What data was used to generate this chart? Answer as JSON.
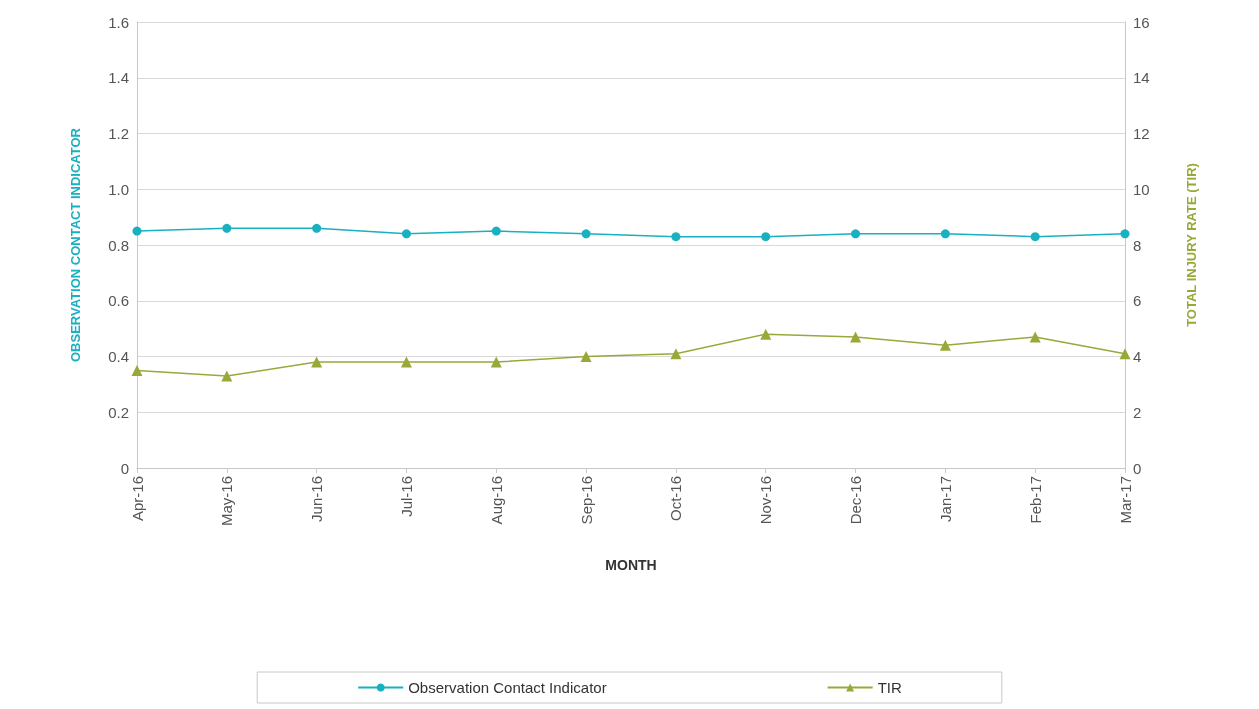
{
  "chart_data": {
    "type": "line",
    "xlabel": "MONTH",
    "ylabel": "OBSERVATION CONTACT INDICATOR",
    "y2label": "TOTAL INJURY RATE (TIR)",
    "categories": [
      "Apr-16",
      "May-16",
      "Jun-16",
      "Jul-16",
      "Aug-16",
      "Sep-16",
      "Oct-16",
      "Nov-16",
      "Dec-16",
      "Jan-17",
      "Feb-17",
      "Mar-17"
    ],
    "series": [
      {
        "name": "Observation Contact Indicator",
        "color": "#19b0c1",
        "marker": "circle",
        "values": [
          0.85,
          0.86,
          0.86,
          0.84,
          0.85,
          0.84,
          0.83,
          0.83,
          0.84,
          0.84,
          0.83,
          0.84
        ]
      },
      {
        "name": "TIR",
        "color": "#9aa83a",
        "marker": "triangle",
        "axis": "y2",
        "values": [
          3.5,
          3.3,
          3.8,
          3.8,
          3.8,
          4.0,
          4.1,
          4.8,
          4.7,
          4.4,
          4.7,
          4.1
        ]
      }
    ],
    "ylim": [
      0,
      1.6
    ],
    "yticks": [
      0,
      0.2,
      0.4,
      0.6,
      {
        "value": 1,
        "label": "1.0"
      },
      0.8,
      1.2,
      1.4,
      1.6
    ],
    "y2lim": [
      0,
      16
    ],
    "y2ticks": [
      0,
      2,
      4,
      6,
      8,
      10,
      12,
      14,
      16
    ],
    "grid": "y",
    "legend": "bottom",
    "line_style": "solid"
  }
}
